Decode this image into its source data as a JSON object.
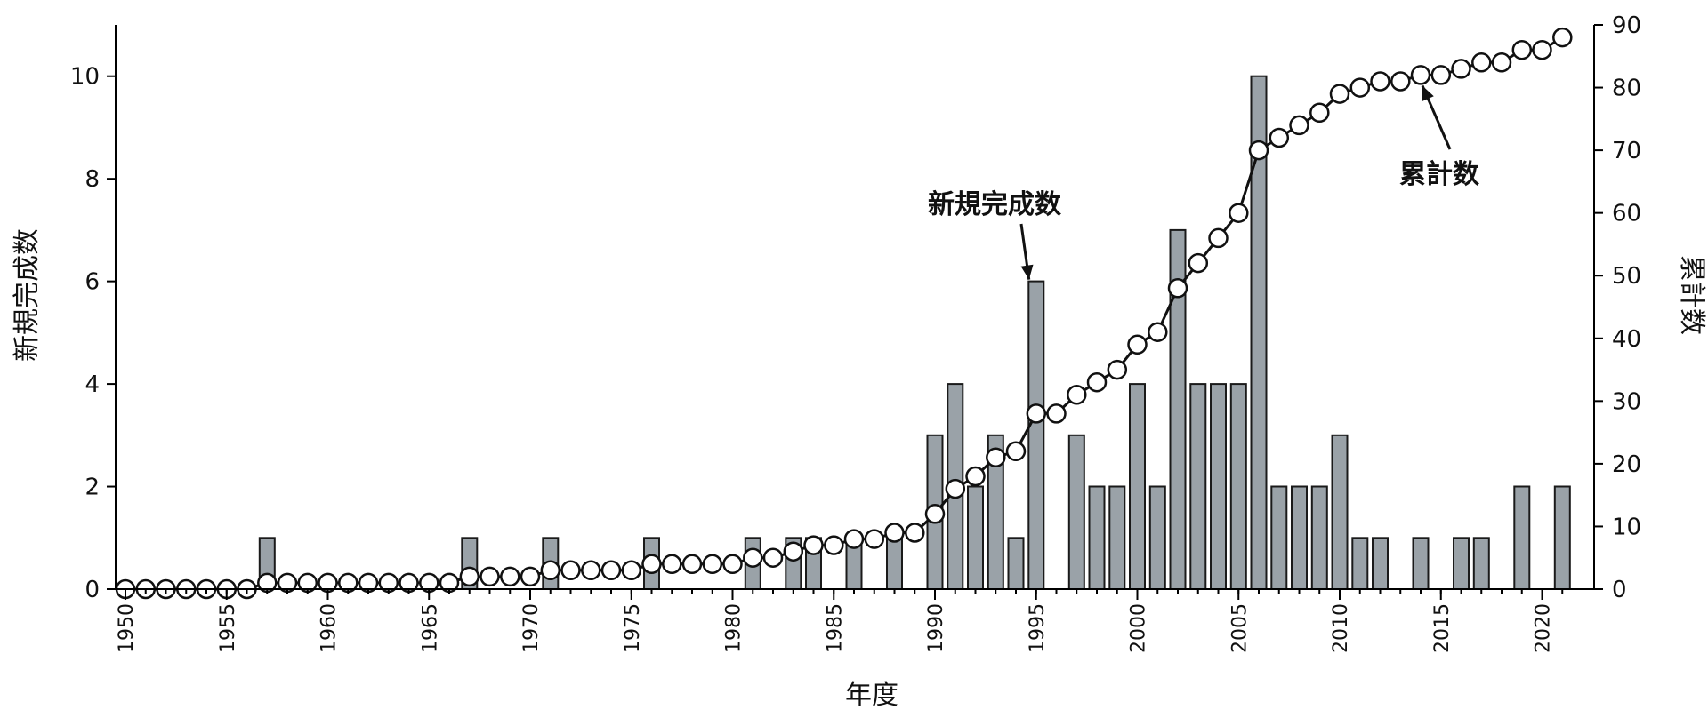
{
  "chart_data": {
    "type": "bar",
    "xlabel": "年度",
    "ylabel_left": "新規完成数",
    "ylabel_right": "累計数",
    "ylim_left": [
      0,
      11
    ],
    "ylim_right": [
      0,
      90
    ],
    "yticks_left": [
      0,
      2,
      4,
      6,
      8,
      10
    ],
    "yticks_right": [
      0,
      10,
      20,
      30,
      40,
      50,
      60,
      70,
      80,
      90
    ],
    "xticks": [
      1950,
      1955,
      1960,
      1965,
      1970,
      1975,
      1980,
      1985,
      1990,
      1995,
      2000,
      2005,
      2010,
      2015,
      2020
    ],
    "x": [
      1950,
      1951,
      1952,
      1953,
      1954,
      1955,
      1956,
      1957,
      1958,
      1959,
      1960,
      1961,
      1962,
      1963,
      1964,
      1965,
      1966,
      1967,
      1968,
      1969,
      1970,
      1971,
      1972,
      1973,
      1974,
      1975,
      1976,
      1977,
      1978,
      1979,
      1980,
      1981,
      1982,
      1983,
      1984,
      1985,
      1986,
      1987,
      1988,
      1989,
      1990,
      1991,
      1992,
      1993,
      1994,
      1995,
      1996,
      1997,
      1998,
      1999,
      2000,
      2001,
      2002,
      2003,
      2004,
      2005,
      2006,
      2007,
      2008,
      2009,
      2010,
      2011,
      2012,
      2013,
      2014,
      2015,
      2016,
      2017,
      2018,
      2019,
      2020,
      2021
    ],
    "series": [
      {
        "name": "新規完成数",
        "axis": "left",
        "kind": "bar",
        "values": [
          0,
          0,
          0,
          0,
          0,
          0,
          0,
          1,
          0,
          0,
          0,
          0,
          0,
          0,
          0,
          0,
          0,
          1,
          0,
          0,
          0,
          1,
          0,
          0,
          0,
          0,
          1,
          0,
          0,
          0,
          0,
          1,
          0,
          1,
          1,
          0,
          1,
          0,
          1,
          0,
          3,
          4,
          2,
          3,
          1,
          6,
          0,
          3,
          2,
          2,
          4,
          2,
          7,
          4,
          4,
          4,
          10,
          2,
          2,
          2,
          3,
          1,
          1,
          0,
          1,
          0,
          1,
          1,
          0,
          2,
          0,
          2
        ]
      },
      {
        "name": "累計数",
        "axis": "right",
        "kind": "line",
        "values": [
          0,
          0,
          0,
          0,
          0,
          0,
          0,
          1,
          1,
          1,
          1,
          1,
          1,
          1,
          1,
          1,
          1,
          2,
          2,
          2,
          2,
          3,
          3,
          3,
          3,
          3,
          4,
          4,
          4,
          4,
          4,
          5,
          5,
          6,
          7,
          7,
          8,
          8,
          9,
          9,
          12,
          16,
          18,
          21,
          22,
          28,
          28,
          31,
          33,
          35,
          39,
          41,
          48,
          52,
          56,
          60,
          70,
          72,
          74,
          76,
          79,
          80,
          81,
          81,
          82,
          82,
          83,
          84,
          84,
          86,
          86,
          88
        ]
      }
    ],
    "annotations": [
      {
        "text": "新規完成数",
        "target_year": 1995,
        "target_series": "新規完成数"
      },
      {
        "text": "累計数",
        "target_year": 2014,
        "target_series": "累計数"
      }
    ]
  }
}
